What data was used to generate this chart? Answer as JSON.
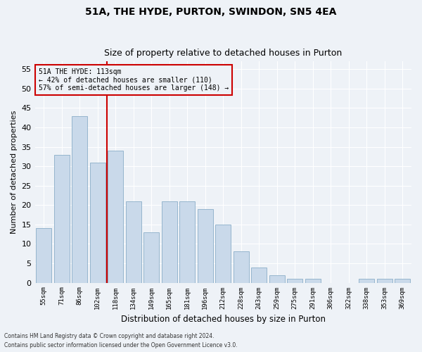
{
  "title1": "51A, THE HYDE, PURTON, SWINDON, SN5 4EA",
  "title2": "Size of property relative to detached houses in Purton",
  "xlabel": "Distribution of detached houses by size in Purton",
  "ylabel": "Number of detached properties",
  "categories": [
    "55sqm",
    "71sqm",
    "86sqm",
    "102sqm",
    "118sqm",
    "134sqm",
    "149sqm",
    "165sqm",
    "181sqm",
    "196sqm",
    "212sqm",
    "228sqm",
    "243sqm",
    "259sqm",
    "275sqm",
    "291sqm",
    "306sqm",
    "322sqm",
    "338sqm",
    "353sqm",
    "369sqm"
  ],
  "values": [
    14,
    33,
    43,
    31,
    34,
    21,
    13,
    21,
    21,
    19,
    15,
    8,
    4,
    2,
    1,
    1,
    0,
    0,
    1,
    1,
    1
  ],
  "bar_color": "#c9d9ea",
  "bar_edge_color": "#8aaec8",
  "vline_x": 3.5,
  "vline_color": "#cc0000",
  "annotation_text": "51A THE HYDE: 113sqm\n← 42% of detached houses are smaller (110)\n57% of semi-detached houses are larger (148) →",
  "annotation_box_edge": "#cc0000",
  "ylim": [
    0,
    57
  ],
  "yticks": [
    0,
    5,
    10,
    15,
    20,
    25,
    30,
    35,
    40,
    45,
    50,
    55
  ],
  "footer1": "Contains HM Land Registry data © Crown copyright and database right 2024.",
  "footer2": "Contains public sector information licensed under the Open Government Licence v3.0.",
  "bg_color": "#eef2f7",
  "grid_color": "#ffffff",
  "title1_fontsize": 10,
  "title2_fontsize": 9
}
